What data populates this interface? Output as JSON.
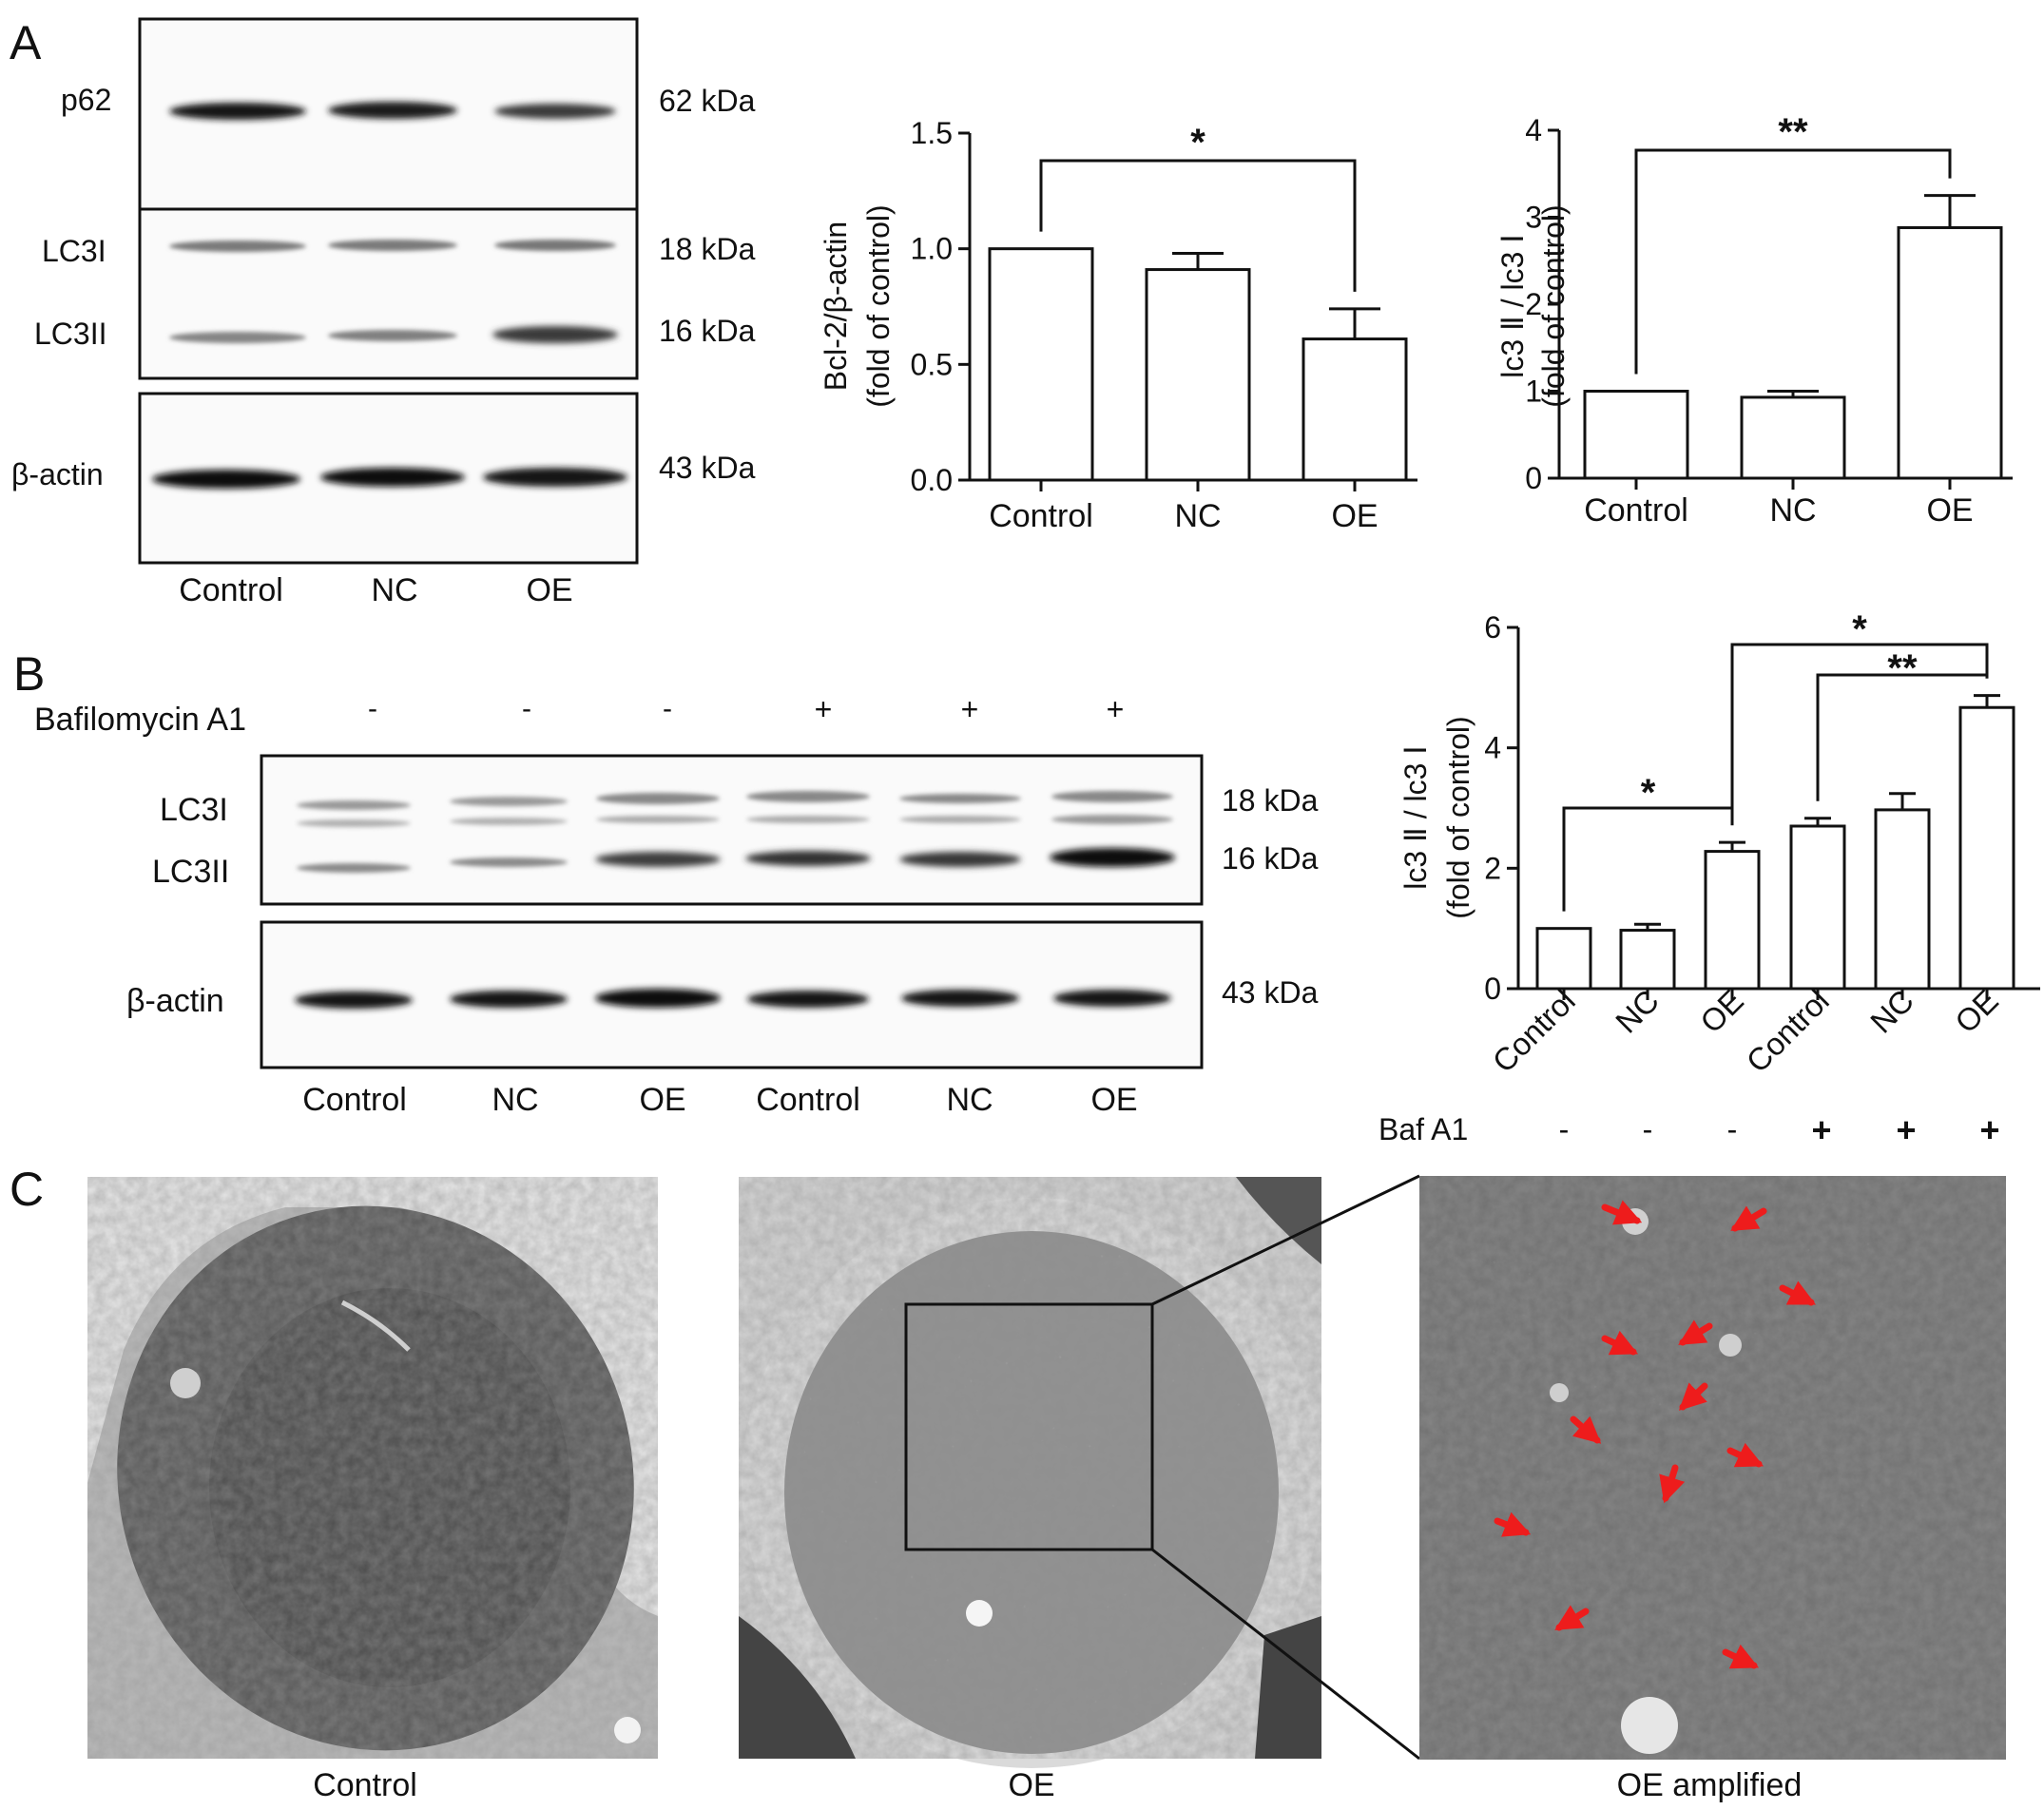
{
  "panel_letters": [
    "A",
    "B",
    "C"
  ],
  "panelA": {
    "blot1": {
      "protein": "p62",
      "size": "62 kDa"
    },
    "blot2": {
      "proteins": [
        "LC3I",
        "LC3II"
      ],
      "sizes": [
        "18 kDa",
        "16 kDa"
      ]
    },
    "blot3": {
      "protein": "β-actin",
      "size": "43 kDa"
    },
    "lanes": [
      "Control",
      "NC",
      "OE"
    ]
  },
  "panelB": {
    "treatment_label": "Bafilomycin A1",
    "treatment_signs": [
      "-",
      "-",
      "-",
      "+",
      "+",
      "+"
    ],
    "blot1": {
      "proteins": [
        "LC3I",
        "LC3II"
      ],
      "sizes": [
        "18 kDa",
        "16 kDa"
      ]
    },
    "blot2": {
      "protein": "β-actin",
      "size": "43 kDa"
    },
    "lanes": [
      "Control",
      "NC",
      "OE",
      "Control",
      "NC",
      "OE"
    ],
    "chart_footer": {
      "label": "Baf A1",
      "signs": [
        "-",
        "-",
        "-",
        "+",
        "+",
        "+"
      ]
    }
  },
  "panelC": {
    "captions": [
      "Control",
      "OE",
      "OE amplified"
    ]
  },
  "chart_data": [
    {
      "id": "chartA1",
      "type": "bar",
      "categories": [
        "Control",
        "NC",
        "OE"
      ],
      "values": [
        1.0,
        0.91,
        0.61
      ],
      "errors": [
        0,
        0.07,
        0.13
      ],
      "ylim": [
        0,
        1.5
      ],
      "yticks": [
        0.0,
        0.5,
        1.0,
        1.5
      ],
      "ytick_labels": [
        "0.0",
        "0.5",
        "1.0",
        "1.5"
      ],
      "ylabel": [
        "Bcl-2/β-actin",
        "(fold of control)"
      ],
      "significance": [
        {
          "from": 0,
          "to": 2,
          "label": "*"
        }
      ]
    },
    {
      "id": "chartA2",
      "type": "bar",
      "categories": [
        "Control",
        "NC",
        "OE"
      ],
      "values": [
        1.0,
        0.93,
        2.88
      ],
      "errors": [
        0,
        0.07,
        0.37
      ],
      "ylim": [
        0,
        4
      ],
      "yticks": [
        0,
        1,
        2,
        3,
        4
      ],
      "ytick_labels": [
        "0",
        "1",
        "2",
        "3",
        "4"
      ],
      "ylabel": [
        "lc3 Ⅱ / lc3 Ⅰ",
        "(fold of control)"
      ],
      "significance": [
        {
          "from": 0,
          "to": 2,
          "label": "**"
        }
      ]
    },
    {
      "id": "chartB",
      "type": "bar",
      "categories": [
        "Control",
        "NC",
        "OE",
        "Control",
        "NC",
        "OE"
      ],
      "values": [
        1.0,
        0.97,
        2.28,
        2.7,
        2.97,
        4.67
      ],
      "errors": [
        0,
        0.1,
        0.15,
        0.13,
        0.27,
        0.2
      ],
      "ylim": [
        0,
        6
      ],
      "yticks": [
        0,
        2,
        4,
        6
      ],
      "ytick_labels": [
        "0",
        "2",
        "4",
        "6"
      ],
      "ylabel": [
        "lc3 Ⅱ / lc3 Ⅰ",
        "(fold of control)"
      ],
      "significance": [
        {
          "from": 0,
          "to": 2,
          "label": "*"
        },
        {
          "from": 2,
          "to": 5,
          "label": "*"
        },
        {
          "from": 3,
          "to": 5,
          "label": "**"
        }
      ]
    }
  ]
}
